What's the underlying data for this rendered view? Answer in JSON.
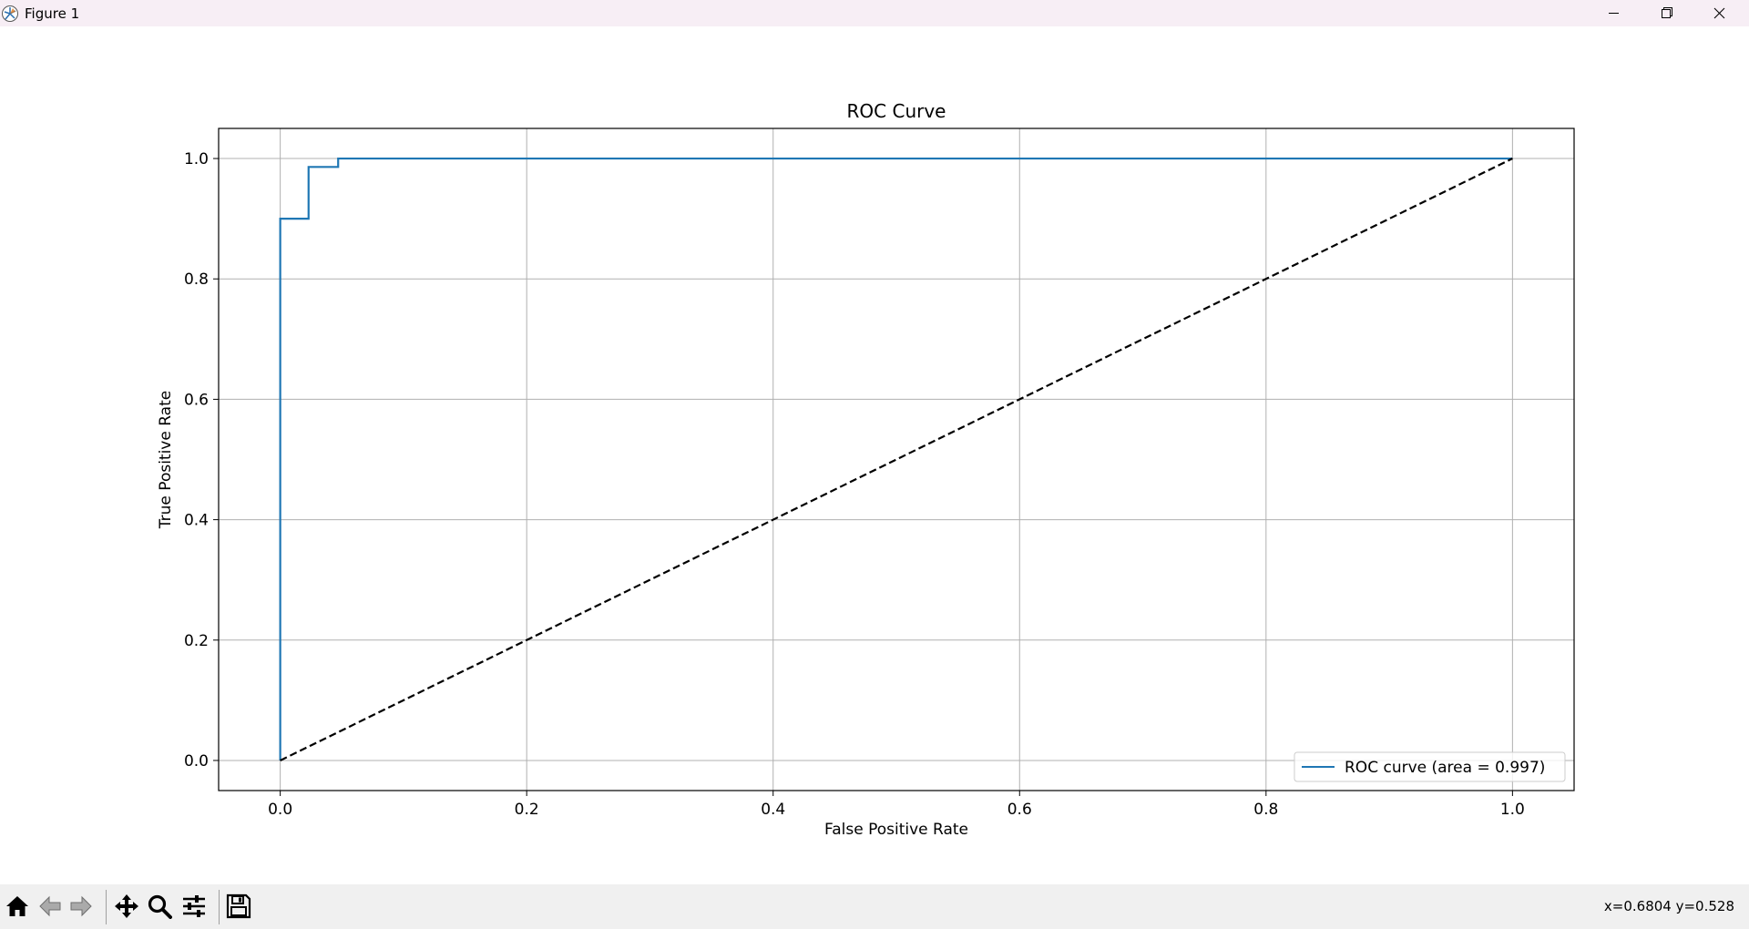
{
  "window": {
    "title": "Figure 1",
    "icons": [
      "app-logo-icon",
      "minimize-icon",
      "restore-icon",
      "close-icon"
    ]
  },
  "toolbar": {
    "buttons": [
      "home-icon",
      "back-icon",
      "forward-icon",
      "pan-icon",
      "zoom-icon",
      "configure-subplots-icon",
      "save-icon"
    ],
    "coords": "x=0.6804 y=0.528"
  },
  "colors": {
    "roc_line": "#1f77b4",
    "diagonal": "#000000",
    "grid": "#b0b0b0",
    "titlebar": "#f7eef5",
    "toolbar": "#f0f0f0"
  },
  "chart_data": {
    "type": "line",
    "title": "ROC Curve",
    "xlabel": "False Positive Rate",
    "ylabel": "True Positive Rate",
    "xlim": [
      -0.05,
      1.05
    ],
    "ylim": [
      -0.05,
      1.05
    ],
    "xticks": [
      0.0,
      0.2,
      0.4,
      0.6,
      0.8,
      1.0
    ],
    "xtick_labels": [
      "0.0",
      "0.2",
      "0.4",
      "0.6",
      "0.8",
      "1.0"
    ],
    "yticks": [
      0.0,
      0.2,
      0.4,
      0.6,
      0.8,
      1.0
    ],
    "ytick_labels": [
      "0.0",
      "0.2",
      "0.4",
      "0.6",
      "0.8",
      "1.0"
    ],
    "grid": true,
    "legend_position": "lower right",
    "series": [
      {
        "name": "ROC curve (area = 0.997)",
        "style": "solid",
        "x": [
          0.0,
          0.0,
          0.023,
          0.023,
          0.047,
          0.047,
          1.0
        ],
        "y": [
          0.0,
          0.9,
          0.9,
          0.986,
          0.986,
          1.0,
          1.0
        ]
      },
      {
        "style": "dashed",
        "x": [
          0.0,
          1.0
        ],
        "y": [
          0.0,
          1.0
        ]
      }
    ]
  }
}
